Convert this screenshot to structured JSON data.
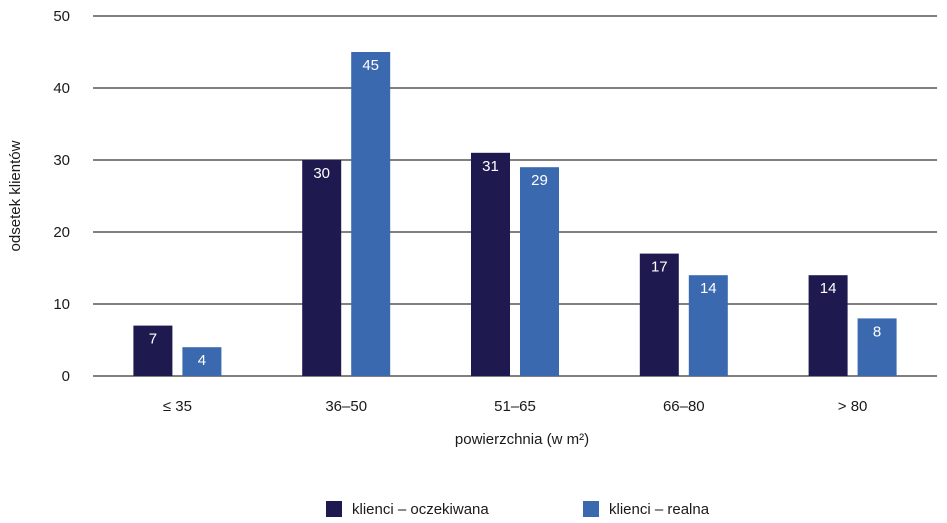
{
  "chart_data": {
    "type": "bar",
    "categories": [
      "≤ 35",
      "36–50",
      "51–65",
      "66–80",
      "> 80"
    ],
    "series": [
      {
        "name": "klienci – oczekiwana",
        "values": [
          7,
          30,
          31,
          17,
          14
        ],
        "color": "#1e1a50"
      },
      {
        "name": "klienci – realna",
        "values": [
          4,
          45,
          29,
          14,
          8
        ],
        "color": "#3b69b0"
      }
    ],
    "xlabel": "powierzchnia (w m²)",
    "ylabel": "odsetek klientów",
    "ylim": [
      0,
      50
    ],
    "yticks": [
      0,
      10,
      20,
      30,
      40,
      50
    ],
    "grid": true,
    "legend": "bottom",
    "data_labels": true
  }
}
